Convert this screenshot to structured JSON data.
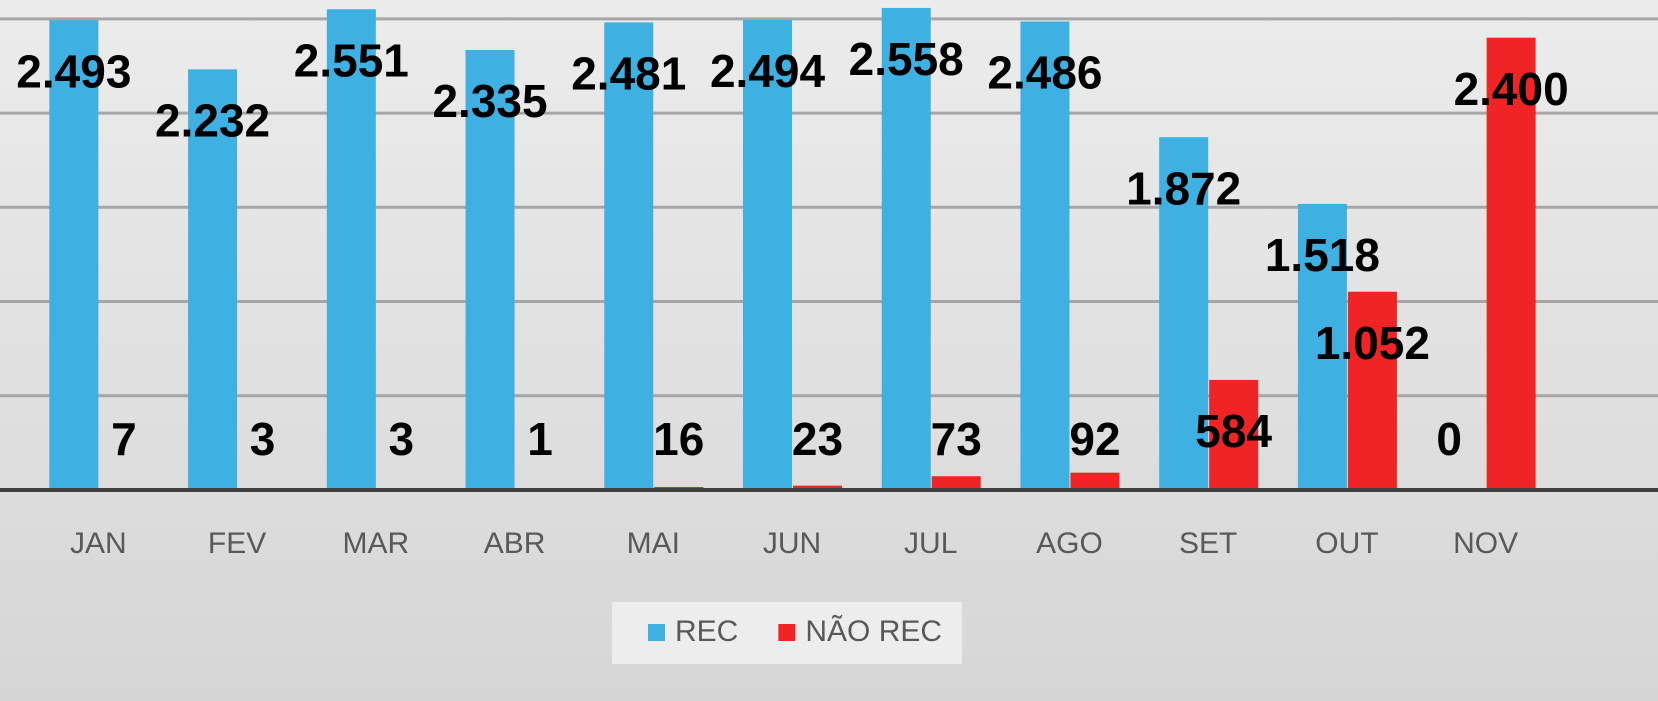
{
  "chart_data": {
    "type": "bar",
    "categories": [
      "JAN",
      "FEV",
      "MAR",
      "ABR",
      "MAI",
      "JUN",
      "JUL",
      "AGO",
      "SET",
      "OUT",
      "NOV"
    ],
    "series": [
      {
        "name": "REC",
        "color": "#3eb0e2",
        "values": [
          2493,
          2232,
          2551,
          2335,
          2481,
          2494,
          2558,
          2486,
          1872,
          1518,
          0
        ],
        "value_labels": [
          "2.493",
          "2.232",
          "2.551",
          "2.335",
          "2.481",
          "2.494",
          "2.558",
          "2.486",
          "1.872",
          "1.518",
          "0"
        ]
      },
      {
        "name": "NÃO REC",
        "color": "#f02424",
        "values": [
          7,
          3,
          3,
          1,
          16,
          23,
          73,
          92,
          584,
          1052,
          2400
        ],
        "value_labels": [
          "7",
          "3",
          "3",
          "1",
          "16",
          "23",
          "73",
          "92",
          "584",
          "1.052",
          "2.400"
        ]
      }
    ],
    "ylim": [
      0,
      2600
    ],
    "yticks": [
      0,
      500,
      1000,
      1500,
      2000,
      2500
    ],
    "grid": true,
    "legend": "bottom"
  }
}
